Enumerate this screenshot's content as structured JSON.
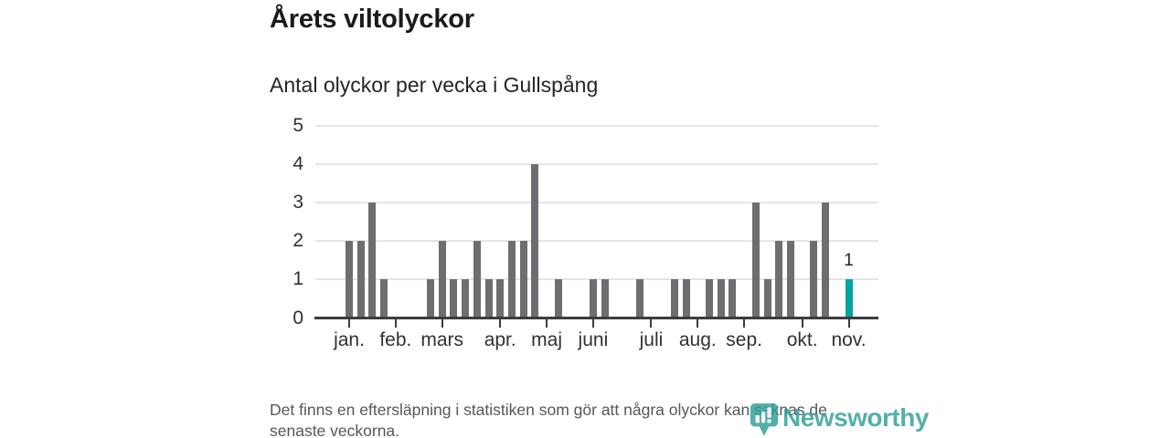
{
  "title": "Årets viltolyckor",
  "subtitle": "Antal olyckor per vecka i Gullspång",
  "footnote": {
    "line1": "Det finns en eftersläpning i statistiken som gör att några olyckor kan saknas de",
    "line2": "senaste veckorna."
  },
  "branding": {
    "logo_text": "Newsworthy",
    "logo_icon": "newsworthy-pin-chart-icon"
  },
  "colors": {
    "bar": "#6d6d72",
    "highlight_bar": "#00a5a2",
    "axis": "#3c3c40",
    "gridline": "#e5e5e7",
    "logo_teal": "#2f9e97"
  },
  "chart_data": {
    "type": "bar",
    "title": "Årets viltolyckor",
    "subtitle": "Antal olyckor per vecka i Gullspång",
    "xlabel": "",
    "ylabel": "",
    "unit": "olyckor per vecka",
    "ylim": [
      0,
      5
    ],
    "y_ticks": [
      0,
      1,
      2,
      3,
      4,
      5
    ],
    "grid": true,
    "legend": "none",
    "values_by_week": [
      2,
      2,
      3,
      1,
      0,
      0,
      0,
      1,
      2,
      1,
      1,
      2,
      1,
      1,
      2,
      2,
      4,
      0,
      1,
      0,
      0,
      1,
      1,
      0,
      0,
      1,
      0,
      0,
      1,
      1,
      0,
      1,
      1,
      1,
      0,
      3,
      1,
      2,
      2,
      0,
      2,
      3,
      0,
      1
    ],
    "highlight_last_bar": true,
    "last_bar_value_label": "1",
    "month_ticks": [
      {
        "label": "jan.",
        "week_index": 0
      },
      {
        "label": "feb.",
        "week_index": 4
      },
      {
        "label": "mars",
        "week_index": 8
      },
      {
        "label": "apr.",
        "week_index": 13
      },
      {
        "label": "maj",
        "week_index": 17
      },
      {
        "label": "juni",
        "week_index": 21
      },
      {
        "label": "juli",
        "week_index": 26
      },
      {
        "label": "aug.",
        "week_index": 30
      },
      {
        "label": "sep.",
        "week_index": 34
      },
      {
        "label": "okt.",
        "week_index": 39
      },
      {
        "label": "nov.",
        "week_index": 43
      }
    ]
  }
}
